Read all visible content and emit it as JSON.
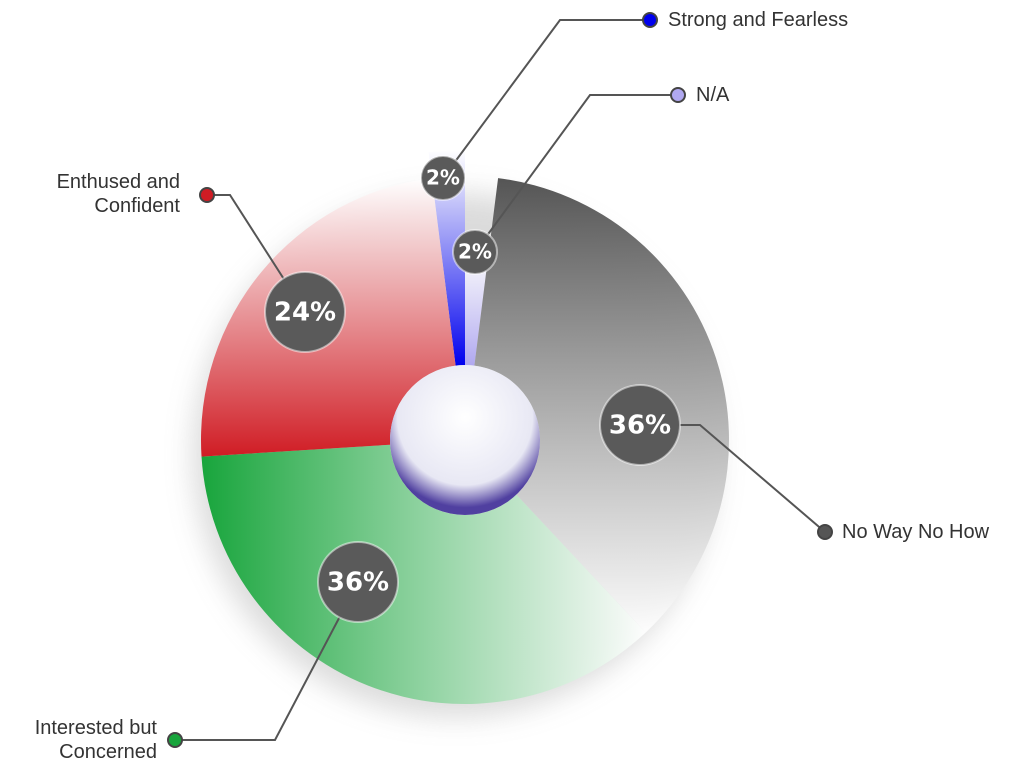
{
  "chart_data": {
    "type": "donut",
    "categories": [
      "Strong and Fearless",
      "N/A",
      "No Way No How",
      "Interested but Concerned",
      "Enthused and Confident"
    ],
    "values": [
      2,
      2,
      36,
      36,
      24
    ],
    "value_labels": [
      "2%",
      "2%",
      "36%",
      "36%",
      "24%"
    ],
    "colors": [
      "#0000ee",
      "#b0a8f0",
      "#555555",
      "#18a53c",
      "#d01c24"
    ]
  }
}
